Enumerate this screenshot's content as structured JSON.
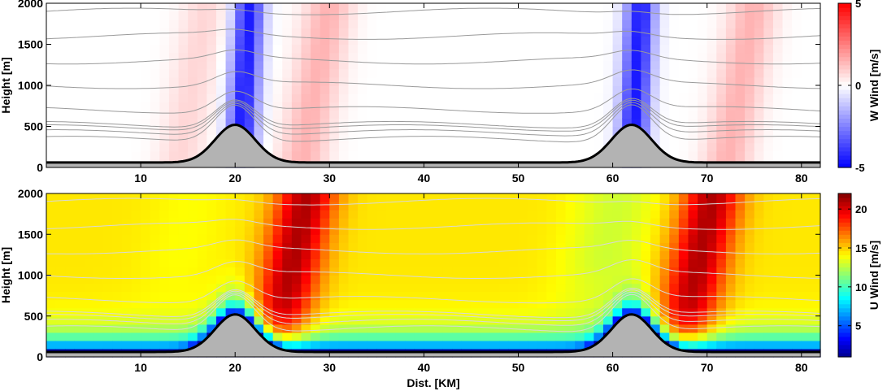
{
  "chart_data": [
    {
      "type": "heatmap",
      "title": "",
      "xlabel": "",
      "ylabel": "Height [m]",
      "xlim": [
        0,
        82
      ],
      "ylim": [
        0,
        2000
      ],
      "x_ticks": [
        10,
        20,
        30,
        40,
        50,
        60,
        70,
        80
      ],
      "y_ticks": [
        0,
        500,
        1000,
        1500,
        2000
      ],
      "colorbar": {
        "label": "W Wind [m/s]",
        "range": [
          -5,
          5
        ],
        "ticks": [
          -5,
          0,
          5
        ],
        "colormap": "blue-white-red"
      },
      "terrain": {
        "base_height_m": 60,
        "peaks": [
          {
            "x_km": 20,
            "height_m": 520
          },
          {
            "x_km": 62,
            "height_m": 520
          }
        ]
      },
      "features": [
        {
          "x_km": 20.5,
          "w_ms": -4.5
        },
        {
          "x_km": 27,
          "w_ms": 1.5
        },
        {
          "x_km": 62,
          "w_ms": -4.5
        },
        {
          "x_km": 72,
          "w_ms": 1.5
        },
        {
          "x_km": 14,
          "w_ms": 0.8
        }
      ]
    },
    {
      "type": "heatmap",
      "title": "",
      "xlabel": "Dist. [KM]",
      "ylabel": "Height [m]",
      "xlim": [
        0,
        82
      ],
      "ylim": [
        0,
        2000
      ],
      "x_ticks": [
        10,
        20,
        30,
        40,
        50,
        60,
        70,
        80
      ],
      "y_ticks": [
        0,
        500,
        1000,
        1500,
        2000
      ],
      "colorbar": {
        "label": "U Wind [m/s]",
        "range": [
          1,
          22
        ],
        "ticks": [
          5,
          10,
          15,
          20
        ],
        "colormap": "jet"
      },
      "terrain": {
        "base_height_m": 60,
        "peaks": [
          {
            "x_km": 20,
            "height_m": 520
          },
          {
            "x_km": 62,
            "height_m": 520
          }
        ]
      },
      "features": [
        {
          "x_km": 24,
          "u_ms": 21
        },
        {
          "x_km": 67,
          "u_ms": 21
        },
        {
          "x_km": 12,
          "u_ms": 14
        },
        {
          "x_km": 57,
          "u_ms": 13
        }
      ]
    }
  ],
  "colors": {
    "terrain_fill": "#b3b3b3",
    "terrain_line": "#000000",
    "isoline": "#9a9a9a"
  }
}
